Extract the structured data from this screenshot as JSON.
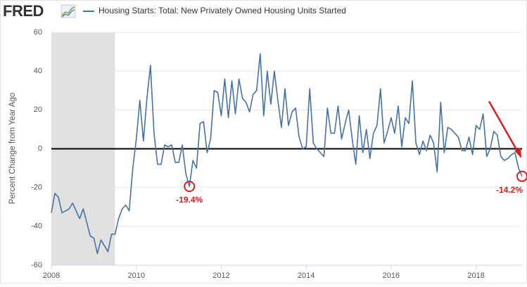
{
  "chart_data": {
    "type": "line",
    "brand": "FRED",
    "y_label": "Percent Change from Year Ago",
    "xlim": [
      2008,
      2019.083
    ],
    "xticks": [
      2008,
      2010,
      2012,
      2014,
      2016,
      2018
    ],
    "ylim": [
      -60,
      60
    ],
    "yticks": [
      -60,
      -40,
      -20,
      0,
      20,
      40,
      60
    ],
    "grid": true,
    "shading": [
      {
        "start": 2008,
        "end": 2009.5,
        "color": "#e1e1e1"
      }
    ],
    "x": [
      2008,
      2008.083,
      2008.167,
      2008.25,
      2008.333,
      2008.417,
      2008.5,
      2008.583,
      2008.667,
      2008.75,
      2008.833,
      2008.917,
      2009,
      2009.083,
      2009.167,
      2009.25,
      2009.333,
      2009.417,
      2009.5,
      2009.583,
      2009.667,
      2009.75,
      2009.833,
      2009.917,
      2010,
      2010.083,
      2010.167,
      2010.25,
      2010.333,
      2010.417,
      2010.5,
      2010.583,
      2010.667,
      2010.75,
      2010.833,
      2010.917,
      2011,
      2011.083,
      2011.167,
      2011.25,
      2011.333,
      2011.417,
      2011.5,
      2011.583,
      2011.667,
      2011.75,
      2011.833,
      2011.917,
      2012,
      2012.083,
      2012.167,
      2012.25,
      2012.333,
      2012.417,
      2012.5,
      2012.583,
      2012.667,
      2012.75,
      2012.833,
      2012.917,
      2013,
      2013.083,
      2013.167,
      2013.25,
      2013.333,
      2013.417,
      2013.5,
      2013.583,
      2013.667,
      2013.75,
      2013.833,
      2013.917,
      2014,
      2014.083,
      2014.167,
      2014.25,
      2014.333,
      2014.417,
      2014.5,
      2014.583,
      2014.667,
      2014.75,
      2014.833,
      2014.917,
      2015,
      2015.083,
      2015.167,
      2015.25,
      2015.333,
      2015.417,
      2015.5,
      2015.583,
      2015.667,
      2015.75,
      2015.833,
      2015.917,
      2016,
      2016.083,
      2016.167,
      2016.25,
      2016.333,
      2016.417,
      2016.5,
      2016.583,
      2016.667,
      2016.75,
      2016.833,
      2016.917,
      2017,
      2017.083,
      2017.167,
      2017.25,
      2017.333,
      2017.417,
      2017.5,
      2017.583,
      2017.667,
      2017.75,
      2017.833,
      2017.917,
      2018,
      2018.083,
      2018.167,
      2018.25,
      2018.333,
      2018.417,
      2018.5,
      2018.583,
      2018.667,
      2018.75,
      2018.833,
      2018.917,
      2019,
      2019.083
    ],
    "series": [
      {
        "name": "Housing Starts: Total: New Privately Owned Housing Units Started",
        "color": "#4572a7",
        "values": [
          -33,
          -23,
          -25,
          -33,
          -32,
          -31,
          -28,
          -32,
          -36,
          -31,
          -38,
          -45,
          -46,
          -54,
          -47,
          -50,
          -53,
          -44,
          -44,
          -36,
          -31,
          -29,
          -32,
          -10,
          5,
          25,
          4,
          26,
          43,
          8,
          -8,
          -8,
          2,
          1,
          2,
          -7,
          -7,
          2,
          -13,
          -19.4,
          -6,
          -10,
          13,
          14,
          -2,
          5,
          30,
          29,
          17,
          36,
          16,
          35,
          18,
          36,
          26,
          24,
          19,
          28,
          30,
          49,
          17,
          40,
          23,
          40,
          25,
          11,
          31,
          12,
          19,
          21,
          6,
          0,
          1,
          31,
          3,
          0,
          -2,
          -4,
          21,
          8,
          8,
          22,
          5,
          13,
          20,
          5,
          -8,
          17,
          -2,
          10,
          -5,
          8,
          12,
          31,
          3,
          9,
          16,
          8,
          22,
          1,
          16,
          13,
          35,
          3,
          -3,
          4,
          -1,
          7,
          3,
          -12,
          24,
          -2,
          11,
          10,
          8,
          6,
          -1,
          -1,
          6,
          -3,
          12,
          10,
          18,
          -4,
          0,
          9,
          7,
          -4,
          -6,
          -5,
          -3,
          -2,
          -10,
          -14.2
        ],
        "value_labels": [
          null,
          null,
          null,
          null,
          null,
          null,
          null,
          null,
          null,
          null,
          null,
          null,
          null,
          null,
          null,
          null,
          null,
          null,
          null,
          null,
          null,
          null,
          null,
          null,
          null,
          null,
          null,
          null,
          null,
          null,
          null,
          null,
          null,
          null,
          null,
          null,
          null,
          null,
          null,
          "-19.4%",
          null,
          null,
          null,
          null,
          null,
          null,
          null,
          null,
          null,
          null,
          null,
          null,
          null,
          null,
          null,
          null,
          null,
          null,
          null,
          null,
          null,
          null,
          null,
          null,
          null,
          null,
          null,
          null,
          null,
          null,
          null,
          null,
          null,
          null,
          null,
          null,
          null,
          null,
          null,
          null,
          null,
          null,
          null,
          null,
          null,
          null,
          null,
          null,
          null,
          null,
          null,
          null,
          null,
          null,
          null,
          null,
          null,
          null,
          null,
          null,
          null,
          null,
          null,
          null,
          null,
          null,
          null,
          null,
          null,
          null,
          null,
          null,
          null,
          null,
          null,
          null,
          null,
          null,
          null,
          null,
          null,
          null,
          null,
          null,
          null,
          null,
          null,
          null,
          null,
          null,
          null,
          null,
          null,
          "-14.2%"
        ]
      }
    ]
  }
}
